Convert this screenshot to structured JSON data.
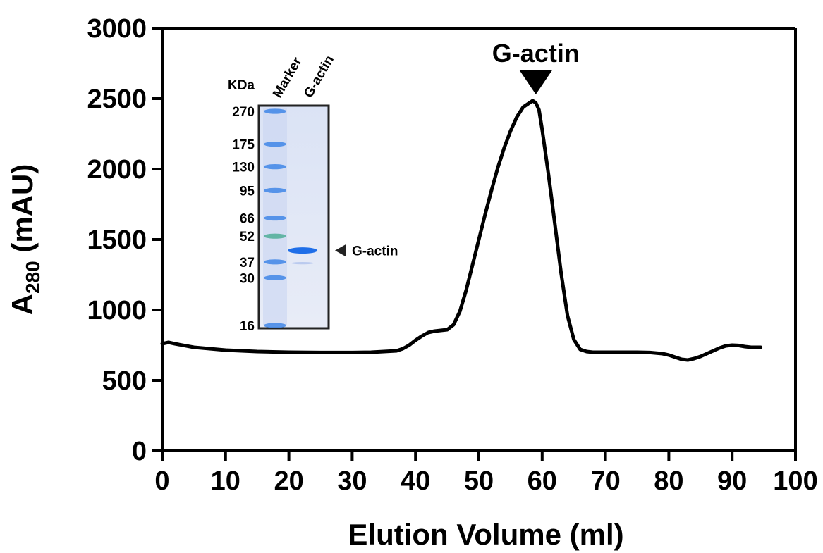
{
  "chart_data": {
    "type": "line",
    "xlabel": "Elution Volume (ml)",
    "ylabel": {
      "main": "A",
      "subscript": "280",
      "unit": " (mAU)"
    },
    "xlim": [
      0,
      100
    ],
    "ylim": [
      0,
      3000
    ],
    "xticks": [
      "0",
      "10",
      "20",
      "30",
      "40",
      "50",
      "60",
      "70",
      "80",
      "90",
      "100"
    ],
    "yticks": [
      "0",
      "500",
      "1000",
      "1500",
      "2000",
      "2500",
      "3000"
    ],
    "grid": false,
    "series": [
      {
        "color": "#000000",
        "x": [
          0,
          1,
          2,
          5,
          10,
          15,
          20,
          25,
          30,
          33,
          35,
          37,
          38,
          39,
          40,
          41,
          42,
          43,
          44,
          45,
          46,
          47,
          48,
          49,
          50,
          51,
          52,
          53,
          54,
          55,
          56,
          57,
          58,
          58.5,
          59,
          59.5,
          60,
          61,
          62,
          63,
          64,
          65,
          66,
          67,
          68,
          70,
          72,
          75,
          77,
          79,
          80,
          81,
          82,
          83,
          84,
          85,
          86,
          87,
          88,
          89,
          90,
          91,
          92,
          93,
          94,
          94.5
        ],
        "y": [
          760,
          770,
          760,
          735,
          715,
          705,
          700,
          698,
          698,
          700,
          705,
          710,
          725,
          750,
          785,
          815,
          840,
          850,
          855,
          860,
          895,
          990,
          1140,
          1320,
          1500,
          1680,
          1850,
          2010,
          2150,
          2270,
          2370,
          2440,
          2470,
          2485,
          2470,
          2420,
          2280,
          1960,
          1610,
          1260,
          960,
          790,
          720,
          705,
          700,
          700,
          700,
          700,
          698,
          690,
          680,
          665,
          650,
          645,
          655,
          670,
          690,
          710,
          730,
          745,
          750,
          748,
          740,
          735,
          735,
          735
        ]
      }
    ],
    "annotation": {
      "label": "G-actin",
      "x": 59
    }
  },
  "inset": {
    "kda_header": "KDa",
    "lane_labels": [
      "Marker",
      "G-actin"
    ],
    "marker_labels": [
      {
        "text": "270",
        "kda": 270
      },
      {
        "text": "175",
        "kda": 175
      },
      {
        "text": "130",
        "kda": 130
      },
      {
        "text": "95",
        "kda": 95
      },
      {
        "text": "66",
        "kda": 66
      },
      {
        "text": "52",
        "kda": 52
      },
      {
        "text": "37",
        "kda": 37
      },
      {
        "text": "30",
        "kda": 30
      },
      {
        "text": "16",
        "kda": 16
      }
    ],
    "band_label": "G-actin",
    "band_kda": 43,
    "gel_background": "#e4e9f6",
    "band_color": "#1f6ee8",
    "marker_color": "#3f86e6",
    "marker_green": "#4fae97"
  }
}
